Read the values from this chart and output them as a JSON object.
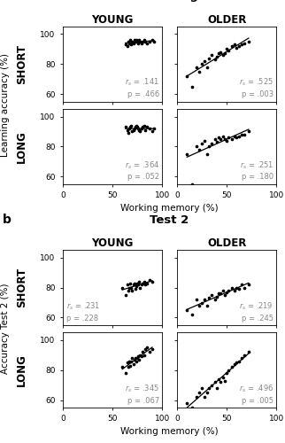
{
  "panel_a_title": "Learning",
  "panel_b_title": "Test 2",
  "col_labels": [
    "YOUNG",
    "OLDER"
  ],
  "row_labels_a": [
    "SHORT",
    "LONG"
  ],
  "row_labels_b": [
    "SHORT",
    "LONG"
  ],
  "ylabel_a": "Learning accuracy (%)",
  "ylabel_b": "Accuracy Test 2 (%)",
  "xlabel": "Working memory (%)",
  "stats": {
    "a_young_short": {
      "rs": ".141",
      "p": ".466"
    },
    "a_young_long": {
      "rs": ".364",
      "p": ".052"
    },
    "a_older_short": {
      "rs": ".525",
      "p": ".003"
    },
    "a_older_long": {
      "rs": ".251",
      "p": ".180"
    },
    "b_young_short": {
      "rs": ".231",
      "p": ".228"
    },
    "b_young_long": {
      "rs": ".345",
      "p": ".067"
    },
    "b_older_short": {
      "rs": ".219",
      "p": ".245"
    },
    "b_older_long": {
      "rs": ".496",
      "p": ".005"
    }
  },
  "data": {
    "a_young_short_x": [
      63,
      65,
      66,
      67,
      68,
      69,
      70,
      71,
      72,
      73,
      74,
      75,
      76,
      77,
      78,
      79,
      80,
      82,
      83,
      85,
      87,
      90,
      92
    ],
    "a_young_short_y": [
      93,
      92,
      95,
      94,
      96,
      93,
      95,
      94,
      96,
      95,
      96,
      95,
      94,
      96,
      95,
      94,
      95,
      96,
      95,
      94,
      95,
      96,
      95
    ],
    "a_young_long_x": [
      63,
      65,
      66,
      67,
      68,
      69,
      70,
      71,
      72,
      73,
      74,
      75,
      76,
      77,
      78,
      79,
      80,
      82,
      83,
      85,
      87,
      90,
      92
    ],
    "a_young_long_y": [
      93,
      91,
      89,
      92,
      93,
      94,
      90,
      91,
      92,
      93,
      94,
      93,
      92,
      91,
      90,
      92,
      93,
      94,
      91,
      93,
      92,
      90,
      92
    ],
    "a_older_short_x": [
      10,
      15,
      20,
      22,
      25,
      28,
      30,
      32,
      35,
      38,
      40,
      42,
      44,
      46,
      48,
      50,
      52,
      55,
      58,
      60,
      62,
      65,
      68,
      72
    ],
    "a_older_short_y": [
      72,
      65,
      78,
      75,
      80,
      82,
      78,
      84,
      86,
      83,
      85,
      87,
      88,
      86,
      87,
      90,
      89,
      92,
      93,
      91,
      92,
      93,
      94,
      95
    ],
    "a_older_long_x": [
      10,
      15,
      20,
      22,
      25,
      28,
      30,
      32,
      35,
      38,
      40,
      42,
      44,
      46,
      48,
      50,
      52,
      55,
      58,
      60,
      62,
      65,
      68,
      72
    ],
    "a_older_long_y": [
      75,
      55,
      80,
      78,
      82,
      84,
      75,
      80,
      82,
      85,
      83,
      86,
      85,
      87,
      85,
      84,
      86,
      85,
      87,
      86,
      87,
      88,
      88,
      90
    ],
    "b_young_short_x": [
      60,
      63,
      65,
      66,
      67,
      68,
      69,
      70,
      71,
      72,
      73,
      74,
      75,
      76,
      77,
      78,
      79,
      80,
      82,
      83,
      85,
      87,
      90
    ],
    "b_young_short_y": [
      80,
      75,
      82,
      78,
      80,
      83,
      80,
      78,
      82,
      83,
      79,
      81,
      83,
      82,
      84,
      80,
      82,
      83,
      84,
      82,
      83,
      85,
      84
    ],
    "b_young_long_x": [
      60,
      63,
      65,
      66,
      67,
      68,
      69,
      70,
      71,
      72,
      73,
      74,
      75,
      76,
      77,
      78,
      79,
      80,
      82,
      83,
      85,
      87,
      90
    ],
    "b_young_long_y": [
      82,
      78,
      85,
      82,
      86,
      83,
      86,
      88,
      84,
      87,
      88,
      86,
      88,
      89,
      87,
      90,
      89,
      92,
      90,
      94,
      95,
      92,
      94
    ],
    "b_older_short_x": [
      10,
      15,
      20,
      22,
      25,
      28,
      30,
      32,
      35,
      38,
      40,
      42,
      44,
      46,
      48,
      50,
      52,
      55,
      58,
      60,
      62,
      65,
      68,
      72
    ],
    "b_older_short_y": [
      65,
      62,
      72,
      68,
      70,
      72,
      68,
      73,
      75,
      72,
      74,
      76,
      76,
      78,
      75,
      77,
      78,
      80,
      78,
      80,
      79,
      82,
      80,
      82
    ],
    "b_older_long_x": [
      10,
      15,
      20,
      22,
      25,
      28,
      30,
      32,
      35,
      38,
      40,
      42,
      44,
      46,
      48,
      50,
      52,
      55,
      58,
      60,
      62,
      65,
      68,
      72
    ],
    "b_older_long_y": [
      58,
      55,
      62,
      65,
      68,
      62,
      65,
      68,
      70,
      72,
      68,
      74,
      72,
      75,
      73,
      78,
      80,
      82,
      84,
      85,
      86,
      88,
      90,
      92
    ]
  },
  "trendline_color": "#000000",
  "dot_color": "#000000",
  "dot_size": 7,
  "stat_text_color": "#888888",
  "stat_fontsize": 6.0,
  "axis_label_fontsize": 7.5,
  "tick_fontsize": 6.5,
  "title_fontsize": 9.5,
  "col_label_fontsize": 8.5,
  "row_label_fontsize": 8.5,
  "panel_label_fontsize": 10,
  "xlim": [
    0,
    100
  ],
  "ylim_a": [
    55,
    105
  ],
  "ylim_b": [
    55,
    105
  ],
  "yticks_a": [
    60,
    80,
    100
  ],
  "yticks_b": [
    60,
    80,
    100
  ],
  "xticks": [
    0,
    50,
    100
  ]
}
